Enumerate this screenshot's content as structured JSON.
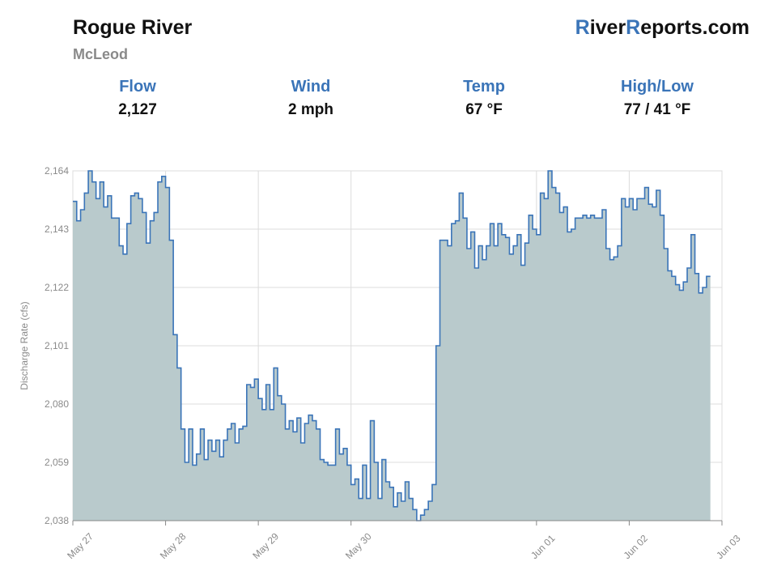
{
  "header": {
    "river": "Rogue River",
    "gauge": "McLeod",
    "brand_r1": "R",
    "brand_rest1": "iver",
    "brand_r2": "R",
    "brand_rest2": "eports.com"
  },
  "stats": [
    {
      "label": "Flow",
      "value": "2,127"
    },
    {
      "label": "Wind",
      "value": "2 mph"
    },
    {
      "label": "Temp",
      "value": "67 °F"
    },
    {
      "label": "High/Low",
      "value": "77 / 41 °F"
    }
  ],
  "colors": {
    "line": "#3a74b8",
    "fill": "#b9cacc",
    "grid": "#dcdcdc",
    "brand_accent": "#3a74b8"
  },
  "chart_data": {
    "type": "area",
    "step": true,
    "ylabel": "Discharge Rate (cfs)",
    "ylim": [
      2038,
      2164
    ],
    "yticks": [
      "2,038",
      "2,059",
      "2,080",
      "2,101",
      "2,122",
      "2,143",
      "2,164"
    ],
    "ytick_values": [
      2038,
      2059,
      2080,
      2101,
      2122,
      2143,
      2164
    ],
    "xlim": [
      "2024-05-27T00:00",
      "2024-06-03T00:00"
    ],
    "xticks": [
      "May 27",
      "May 28",
      "May 29",
      "May 30",
      "Jun 01",
      "Jun 02",
      "Jun 03"
    ],
    "xtick_dates": [
      "2024-05-27T00:00",
      "2024-05-28T00:00",
      "2024-05-29T00:00",
      "2024-05-30T00:00",
      "2024-06-01T00:00",
      "2024-06-02T00:00",
      "2024-06-03T00:00"
    ],
    "grid": true,
    "series": [
      {
        "x_start": "2024-05-27T00:00",
        "interval_hours": 1,
        "values": [
          2153,
          2146,
          2150,
          2156,
          2164,
          2160,
          2154,
          2160,
          2151,
          2155,
          2147,
          2147,
          2137,
          2134,
          2145,
          2155,
          2156,
          2154,
          2149,
          2138,
          2146,
          2149,
          2160,
          2162,
          2158,
          2139,
          2105,
          2093,
          2071,
          2059,
          2071,
          2058,
          2062,
          2071,
          2060,
          2067,
          2063,
          2067,
          2061,
          2067,
          2071,
          2073,
          2066,
          2071,
          2072,
          2087,
          2086,
          2089,
          2082,
          2078,
          2087,
          2078,
          2093,
          2083,
          2080,
          2071,
          2074,
          2070,
          2075,
          2066,
          2073,
          2076,
          2074,
          2071,
          2060,
          2059,
          2058,
          2058,
          2071,
          2062,
          2064,
          2058,
          2051,
          2053,
          2046,
          2058,
          2046,
          2074,
          2059,
          2046,
          2060,
          2052,
          2050,
          2043,
          2048,
          2045,
          2052,
          2046,
          2042,
          2038,
          2040,
          2042,
          2045,
          2051,
          2101,
          2139,
          2139,
          2137,
          2145,
          2146,
          2156,
          2147,
          2136,
          2142,
          2129,
          2137,
          2132,
          2137,
          2145,
          2137,
          2145,
          2141,
          2140,
          2134,
          2137,
          2141,
          2130,
          2138,
          2148,
          2143,
          2141,
          2156,
          2154,
          2164,
          2158,
          2156,
          2149,
          2151,
          2142,
          2143,
          2147,
          2147,
          2148,
          2147,
          2148,
          2147,
          2147,
          2150,
          2136,
          2132,
          2133,
          2137,
          2154,
          2151,
          2154,
          2150,
          2154,
          2154,
          2158,
          2152,
          2151,
          2157,
          2148,
          2136,
          2128,
          2126,
          2123,
          2121,
          2124,
          2129,
          2141,
          2127,
          2120,
          2122,
          2126
        ]
      }
    ]
  }
}
